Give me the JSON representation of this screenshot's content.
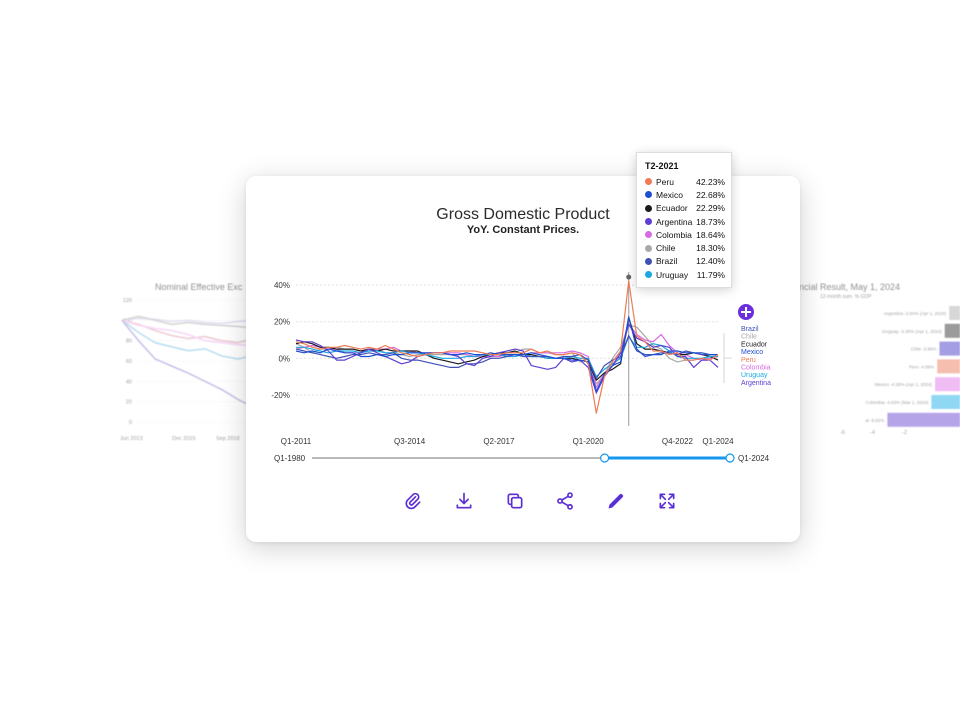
{
  "card": {
    "title": "Gross Domestic Product",
    "subtitle": "YoY. Constant Prices."
  },
  "chart_data": [
    {
      "type": "line",
      "title": "Gross Domestic Product",
      "subtitle": "YoY. Constant Prices.",
      "x_ticks": [
        "Q1-2011",
        "Q3-2014",
        "Q2-2017",
        "Q1-2020",
        "Q4-2022",
        "Q1-2024"
      ],
      "y_ticks": [
        "40%",
        "20%",
        "0%",
        "-20%"
      ],
      "ylim": [
        -25,
        45
      ],
      "grid": true,
      "legend_position": "right",
      "range_slider": {
        "start_label": "Q1-1980",
        "end_label": "Q1-2024",
        "selected_from": 0.7,
        "selected_to": 1.0
      },
      "hover_point": "T2-2021",
      "x": [
        "Q1-2011",
        "Q2-2011",
        "Q3-2011",
        "Q4-2011",
        "Q1-2012",
        "Q2-2012",
        "Q3-2012",
        "Q4-2012",
        "Q1-2013",
        "Q2-2013",
        "Q3-2013",
        "Q4-2013",
        "Q1-2014",
        "Q2-2014",
        "Q3-2014",
        "Q4-2014",
        "Q1-2015",
        "Q2-2015",
        "Q3-2015",
        "Q4-2015",
        "Q1-2016",
        "Q2-2016",
        "Q3-2016",
        "Q4-2016",
        "Q1-2017",
        "Q2-2017",
        "Q3-2017",
        "Q4-2017",
        "Q1-2018",
        "Q2-2018",
        "Q3-2018",
        "Q4-2018",
        "Q1-2019",
        "Q2-2019",
        "Q3-2019",
        "Q4-2019",
        "Q1-2020",
        "Q2-2020",
        "Q3-2020",
        "Q4-2020",
        "Q1-2021",
        "Q2-2021",
        "Q3-2021",
        "Q4-2021",
        "Q1-2022",
        "Q2-2022",
        "Q3-2022",
        "Q4-2022",
        "Q1-2023",
        "Q2-2023",
        "Q3-2023",
        "Q4-2023",
        "Q1-2024"
      ],
      "series": [
        {
          "name": "Peru",
          "color": "#ef7b55",
          "values": [
            9,
            8,
            6,
            5,
            6,
            6,
            7,
            6,
            5,
            6,
            5,
            7,
            5,
            3,
            2,
            1,
            2,
            3,
            3,
            4,
            4,
            4,
            4,
            3,
            2,
            2,
            3,
            3,
            3,
            5,
            3,
            4,
            2,
            2,
            3,
            2,
            -3,
            -30,
            -10,
            -2,
            4,
            42.23,
            12,
            9,
            4,
            4,
            2,
            3,
            -1,
            -1,
            0,
            -1,
            2
          ]
        },
        {
          "name": "Mexico",
          "color": "#1f4fd1",
          "values": [
            4,
            3,
            4,
            3,
            5,
            4,
            3,
            3,
            1,
            1,
            2,
            1,
            2,
            2,
            3,
            3,
            3,
            3,
            3,
            2,
            2,
            3,
            2,
            2,
            3,
            2,
            2,
            2,
            2,
            3,
            2,
            1,
            0,
            0,
            -1,
            -1,
            -2,
            -18,
            -9,
            -4,
            -2,
            22.68,
            5,
            1,
            2,
            2,
            4,
            4,
            3,
            3,
            3,
            2,
            2
          ]
        },
        {
          "name": "Ecuador",
          "color": "#1b1b1b",
          "values": [
            8,
            9,
            8,
            6,
            6,
            5,
            5,
            5,
            4,
            5,
            4,
            5,
            4,
            4,
            4,
            4,
            2,
            0,
            -1,
            -2,
            -3,
            -2,
            -1,
            1,
            2,
            3,
            3,
            4,
            2,
            2,
            1,
            0,
            0,
            0,
            0,
            -1,
            -2,
            -12,
            -8,
            -6,
            -3,
            22.29,
            8,
            5,
            5,
            4,
            3,
            2,
            2,
            3,
            2,
            1,
            -1
          ]
        },
        {
          "name": "Argentina",
          "color": "#5d3fd3",
          "values": [
            10,
            9,
            9,
            7,
            4,
            -1,
            -1,
            1,
            3,
            5,
            3,
            1,
            -1,
            -3,
            -2,
            1,
            2,
            3,
            3,
            2,
            1,
            -3,
            -4,
            0,
            1,
            3,
            4,
            5,
            4,
            -4,
            -5,
            -6,
            -5,
            0,
            -2,
            -1,
            -5,
            -19,
            -10,
            -4,
            3,
            18.73,
            11,
            9,
            6,
            7,
            6,
            1,
            1,
            -5,
            -1,
            -1,
            -5
          ]
        },
        {
          "name": "Colombia",
          "color": "#d86be0",
          "values": [
            5,
            6,
            7,
            6,
            5,
            5,
            3,
            3,
            3,
            5,
            5,
            5,
            6,
            4,
            4,
            3,
            3,
            3,
            3,
            3,
            3,
            2,
            1,
            1,
            1,
            1,
            2,
            2,
            2,
            3,
            3,
            3,
            3,
            3,
            4,
            3,
            1,
            -16,
            -8,
            -4,
            1,
            18.64,
            13,
            10,
            9,
            13,
            7,
            3,
            2,
            0,
            -1,
            0,
            1
          ]
        },
        {
          "name": "Chile",
          "color": "#a9a9a9",
          "values": [
            8,
            6,
            3,
            5,
            5,
            6,
            5,
            5,
            4,
            4,
            5,
            3,
            3,
            2,
            1,
            2,
            2,
            2,
            2,
            2,
            2,
            2,
            1,
            1,
            1,
            1,
            3,
            3,
            5,
            5,
            3,
            3,
            2,
            2,
            3,
            -2,
            0,
            -14,
            -9,
            0,
            6,
            18.3,
            17,
            12,
            7,
            5,
            0,
            -2,
            -1,
            -1,
            0,
            0,
            2
          ]
        },
        {
          "name": "Brazil",
          "color": "#3f51b5",
          "values": [
            5,
            4,
            3,
            2,
            1,
            0,
            1,
            2,
            2,
            3,
            2,
            2,
            3,
            0,
            -1,
            -1,
            -2,
            -3,
            -4,
            -5,
            -5,
            -3,
            -3,
            -2,
            0,
            0,
            1,
            2,
            1,
            1,
            1,
            1,
            0,
            1,
            1,
            2,
            -1,
            -11,
            -4,
            -1,
            1,
            12.4,
            4,
            2,
            2,
            3,
            3,
            2,
            4,
            3,
            2,
            2,
            2
          ]
        },
        {
          "name": "Uruguay",
          "color": "#1aa8e0",
          "values": [
            6,
            6,
            5,
            4,
            3,
            4,
            4,
            4,
            3,
            4,
            4,
            3,
            3,
            4,
            3,
            3,
            2,
            1,
            0,
            0,
            0,
            1,
            1,
            2,
            2,
            2,
            1,
            1,
            2,
            1,
            1,
            0,
            0,
            0,
            1,
            0,
            0,
            -10,
            -6,
            -3,
            0,
            11.79,
            6,
            6,
            8,
            7,
            4,
            1,
            0,
            0,
            0,
            1,
            1
          ]
        }
      ],
      "legend_labels": [
        {
          "name": "Brazil",
          "color": "#3f51b5"
        },
        {
          "name": "Chile",
          "color": "#a9a9a9"
        },
        {
          "name": "Ecuador",
          "color": "#1b1b1b"
        },
        {
          "name": "Mexico",
          "color": "#1f4fd1"
        },
        {
          "name": "Peru",
          "color": "#ef7b55"
        },
        {
          "name": "Colombia",
          "color": "#d86be0"
        },
        {
          "name": "Uruguay",
          "color": "#1aa8e0"
        },
        {
          "name": "Argentina",
          "color": "#5d3fd3"
        }
      ]
    },
    {
      "type": "line",
      "title": "Nominal Effective Exc",
      "y_ticks": [
        "120",
        "100",
        "80",
        "60",
        "40",
        "20",
        "0"
      ],
      "x_ticks": [
        "Jun 2013",
        "Dec 2015",
        "Sep 2018"
      ],
      "ylim": [
        0,
        120
      ],
      "x": [
        0,
        1,
        2,
        3,
        4,
        5,
        6,
        7,
        8,
        9,
        10
      ],
      "series": [
        {
          "color": "#c9c9e8",
          "values": [
            100,
            102,
            101,
            99,
            100,
            98,
            97,
            99,
            100,
            101,
            100
          ]
        },
        {
          "color": "#e0a0b0",
          "values": [
            100,
            96,
            90,
            85,
            82,
            84,
            80,
            78,
            82,
            84,
            80
          ]
        },
        {
          "color": "#86c4e8",
          "values": [
            100,
            88,
            78,
            74,
            70,
            72,
            65,
            62,
            66,
            64,
            60
          ]
        },
        {
          "color": "#f0b8f0",
          "values": [
            100,
            95,
            92,
            90,
            86,
            80,
            78,
            76,
            75,
            78,
            74
          ]
        },
        {
          "color": "#b5b5b5",
          "values": [
            100,
            104,
            100,
            96,
            98,
            96,
            95,
            94,
            92,
            95,
            96
          ]
        },
        {
          "color": "#9a8fd8",
          "values": [
            100,
            80,
            62,
            55,
            48,
            40,
            32,
            22,
            14,
            10,
            8
          ]
        }
      ]
    },
    {
      "type": "bar",
      "title": "ancial Result, May 1, 2024",
      "subtitle": "12-month sum. % GDP",
      "categories": [
        "Argentina -2.94% (Apr 1, 2024)",
        "Uruguay -3.36% (Apr 1, 2024)",
        "Chile -3.86%",
        "Peru -4.08%",
        "Mexico -4.28% (Apr 1, 2024)",
        "Colombia -4.63% (Mar 1, 2024)",
        "al -8.82%"
      ],
      "values": [
        2.94,
        3.36,
        3.86,
        4.08,
        4.28,
        4.63,
        8.82
      ],
      "colors": [
        "#b8b8b8",
        "#4a4a4a",
        "#5b4fd0",
        "#ef8a6e",
        "#e587ec",
        "#37b7ec",
        "#7c5ad8"
      ],
      "x_ticks": [
        "-6",
        "-4",
        "-2"
      ]
    }
  ],
  "tooltip": {
    "title": "T2-2021",
    "rows": [
      {
        "name": "Peru",
        "value": "42.23%",
        "color": "#ef7b55"
      },
      {
        "name": "Mexico",
        "value": "22.68%",
        "color": "#1f4fd1"
      },
      {
        "name": "Ecuador",
        "value": "22.29%",
        "color": "#1b1b1b"
      },
      {
        "name": "Argentina",
        "value": "18.73%",
        "color": "#5d3fd3"
      },
      {
        "name": "Colombia",
        "value": "18.64%",
        "color": "#d86be0"
      },
      {
        "name": "Chile",
        "value": "18.30%",
        "color": "#a9a9a9"
      },
      {
        "name": "Brazil",
        "value": "12.40%",
        "color": "#3f51b5"
      },
      {
        "name": "Uruguay",
        "value": "11.79%",
        "color": "#1aa8e0"
      }
    ]
  },
  "toolbar": {
    "icons": [
      "link-icon",
      "download-icon",
      "copy-icon",
      "share-icon",
      "edit-icon",
      "expand-icon"
    ],
    "accent": "#5b2fd6"
  }
}
